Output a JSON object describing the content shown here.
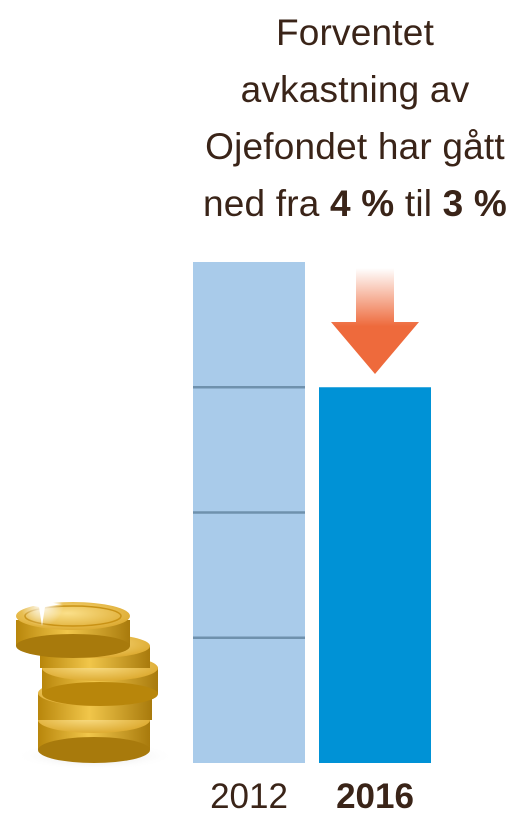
{
  "title": {
    "line1": "Forventet",
    "line2": "avkastning av",
    "line3": "Ojefondet har gått",
    "line4_prefix": "ned fra ",
    "line4_value1": "4 %",
    "line4_middle": " til ",
    "line4_value2": "3 %"
  },
  "colors": {
    "bar_2012": "#a9cbea",
    "bar_2016": "#0092d6",
    "gridline": "#6f91ad",
    "arrow": "#ee6a3c",
    "text": "#3a2418"
  },
  "chart_data": {
    "type": "bar",
    "categories": [
      "2012",
      "2016"
    ],
    "values": [
      4,
      3
    ],
    "unit": "%",
    "ylim": [
      0,
      4
    ],
    "gridlines": [
      1,
      2,
      3
    ],
    "emphasized_category": "2016",
    "annotation": "down-arrow above 2016 bar"
  },
  "decorations": {
    "coins_icon": "gold-coin-stack-icon",
    "arrow_icon": "down-arrow-icon"
  }
}
